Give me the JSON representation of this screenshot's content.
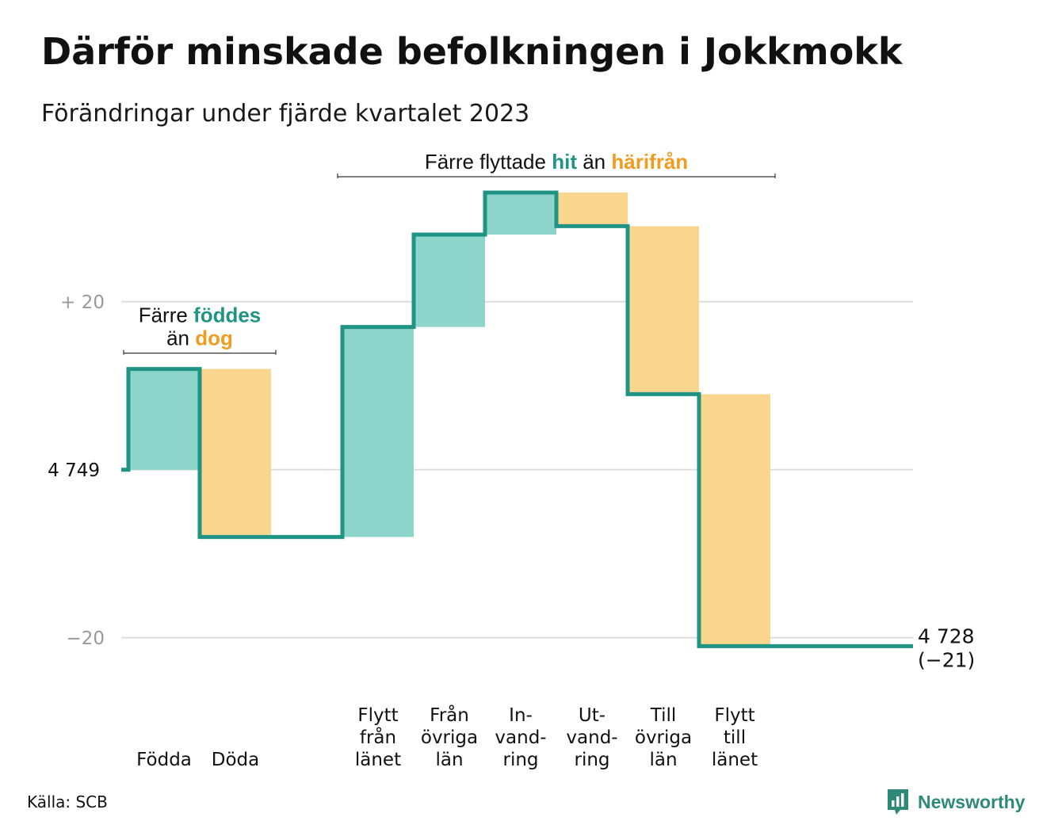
{
  "title": "Därför minskade befolkningen i Jokkmokk",
  "subtitle": "Förändringar under fjärde kvartalet 2023",
  "source": "Källa: SCB",
  "logo": {
    "text": "Newsworthy",
    "icon": "newsworthy-chart-icon"
  },
  "colors": {
    "increase": "#8dd4cb",
    "decrease": "#fad58e",
    "line": "#1f9484",
    "grid": "#dddddd",
    "annot_teal": "#1f9484",
    "annot_orange": "#f29c1f"
  },
  "chart_data": {
    "type": "waterfall",
    "start": 4749,
    "end": 4728,
    "end_label": "4 728",
    "net_label": "(−21)",
    "start_label": "4 749",
    "yticks": [
      {
        "value": 20,
        "label": "+  20"
      },
      {
        "value": 0,
        "label": "4  749"
      },
      {
        "value": -20,
        "label": "−20"
      }
    ],
    "ylim": [
      -22,
      33
    ],
    "steps": [
      {
        "lines": [
          "Födda"
        ],
        "value": 12,
        "kind": "increase"
      },
      {
        "lines": [
          "Döda"
        ],
        "value": -20,
        "kind": "decrease"
      },
      {
        "lines": [],
        "value": 0,
        "kind": "gap"
      },
      {
        "lines": [
          "Flytt",
          "från",
          "länet"
        ],
        "value": 25,
        "kind": "increase"
      },
      {
        "lines": [
          "Från",
          "övriga",
          "län"
        ],
        "value": 11,
        "kind": "increase"
      },
      {
        "lines": [
          "In-",
          "vand-",
          "ring"
        ],
        "value": 5,
        "kind": "increase"
      },
      {
        "lines": [
          "Ut-",
          "vand-",
          "ring"
        ],
        "value": -4,
        "kind": "decrease"
      },
      {
        "lines": [
          "Till",
          "övriga",
          "län"
        ],
        "value": -20,
        "kind": "decrease"
      },
      {
        "lines": [
          "Flytt",
          "till",
          "länet"
        ],
        "value": -30,
        "kind": "decrease"
      }
    ],
    "annotations": [
      {
        "first": 0,
        "last": 1,
        "lines": [
          [
            {
              "text": "Färre ",
              "color": "dark"
            },
            {
              "text": "föddes",
              "color": "teal"
            }
          ],
          [
            {
              "text": "än ",
              "color": "dark"
            },
            {
              "text": "dog",
              "color": "orange"
            }
          ]
        ]
      },
      {
        "first": 3,
        "last": 8,
        "lines": [
          [
            {
              "text": "Färre flyttade ",
              "color": "dark"
            },
            {
              "text": "hit",
              "color": "teal"
            },
            {
              "text": " än ",
              "color": "dark"
            },
            {
              "text": "härifrån",
              "color": "orange"
            }
          ]
        ]
      }
    ]
  }
}
